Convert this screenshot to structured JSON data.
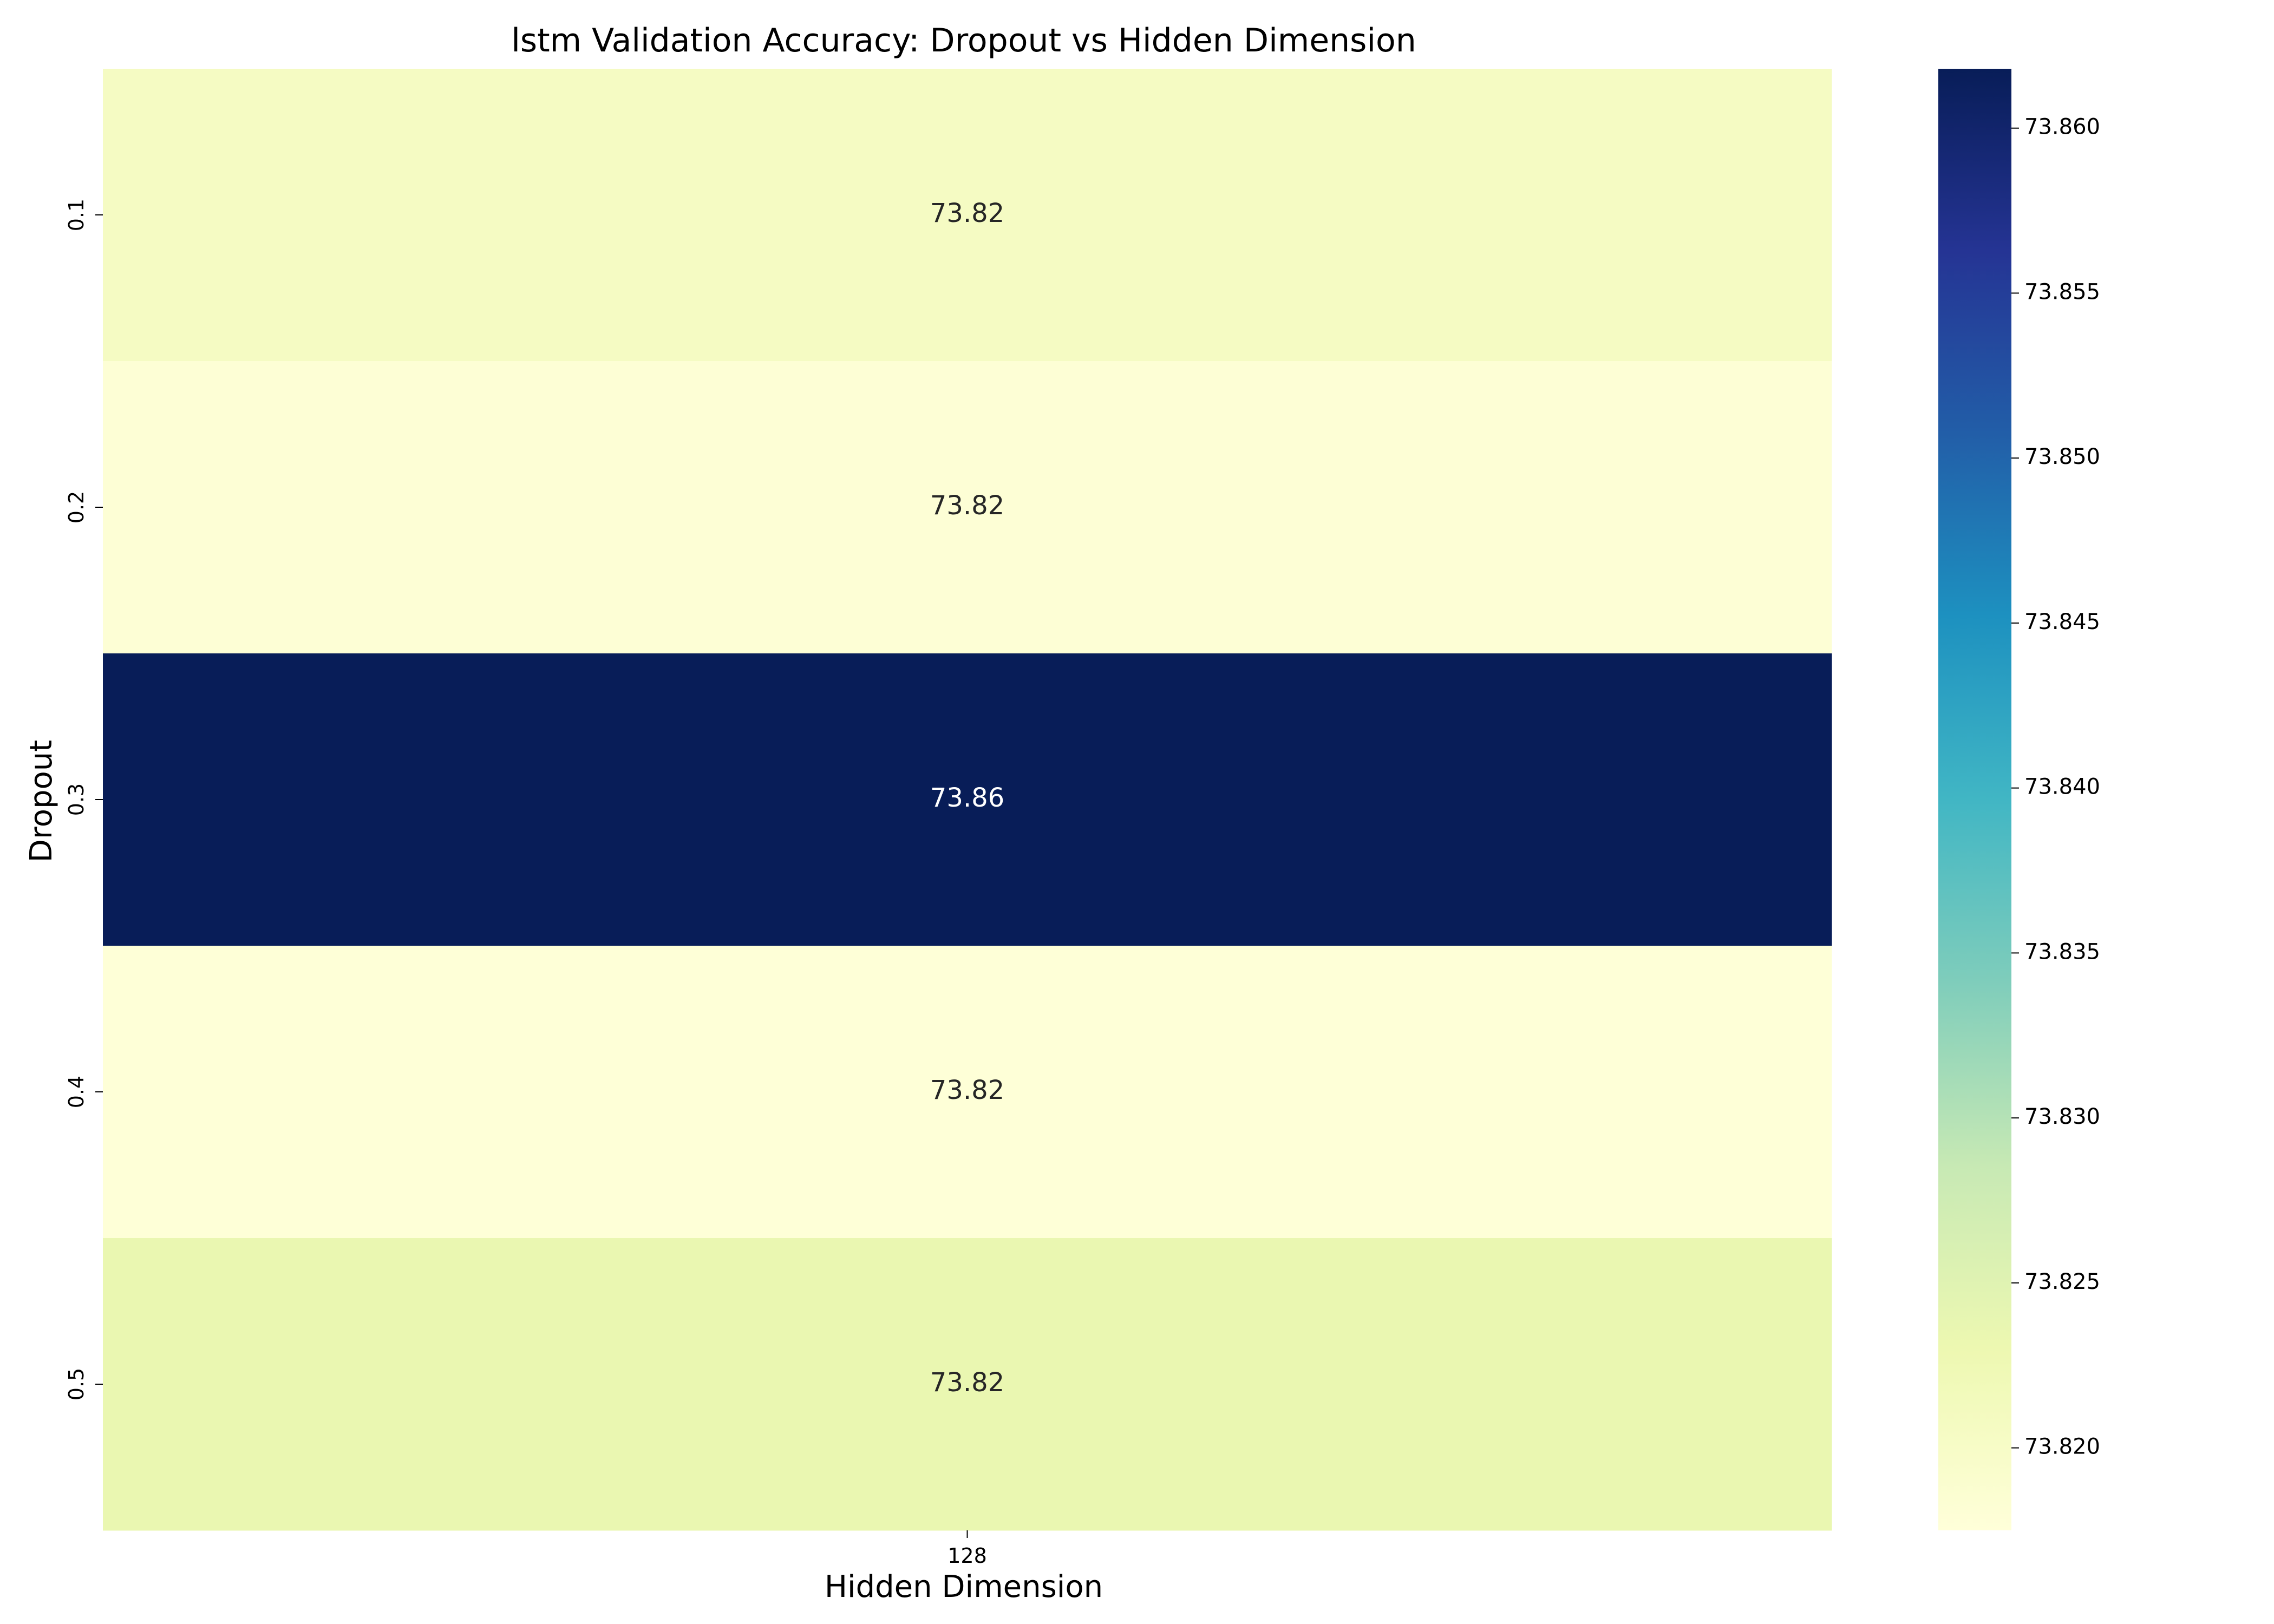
{
  "chart_data": {
    "type": "heatmap",
    "title": "lstm Validation Accuracy: Dropout vs Hidden Dimension",
    "xlabel": "Hidden Dimension",
    "ylabel": "Dropout",
    "x_categories": [
      "128"
    ],
    "y_categories": [
      "0.1",
      "0.2",
      "0.3",
      "0.4",
      "0.5"
    ],
    "values": [
      [
        73.8205
      ],
      [
        73.818
      ],
      [
        73.8618
      ],
      [
        73.8178
      ],
      [
        73.8235
      ]
    ],
    "cell_labels": [
      [
        "73.82"
      ],
      [
        "73.82"
      ],
      [
        "73.86"
      ],
      [
        "73.82"
      ],
      [
        "73.82"
      ]
    ],
    "colormap": "YlGnBu",
    "colorbar": {
      "range": [
        73.8175,
        73.8618
      ],
      "ticks": [
        73.82,
        73.825,
        73.83,
        73.835,
        73.84,
        73.845,
        73.85,
        73.855,
        73.86
      ],
      "tick_labels": [
        "73.820",
        "73.825",
        "73.830",
        "73.835",
        "73.840",
        "73.845",
        "73.850",
        "73.855",
        "73.860"
      ]
    },
    "grid": false
  }
}
